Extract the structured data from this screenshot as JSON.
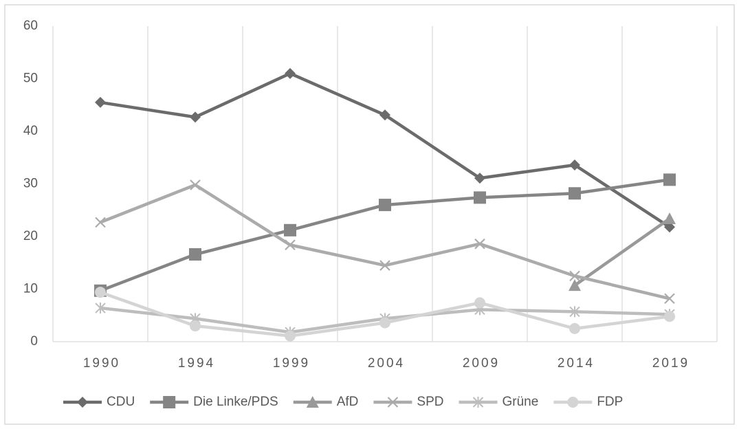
{
  "chart_data": {
    "type": "line",
    "categories": [
      "1990",
      "1994",
      "1999",
      "2004",
      "2009",
      "2014",
      "2019"
    ],
    "series": [
      {
        "name": "CDU",
        "color": "#6b6b6b",
        "marker": "diamond",
        "values": [
          45.5,
          42.7,
          51.0,
          43.1,
          31.1,
          33.6,
          21.8
        ]
      },
      {
        "name": "Die Linke/PDS",
        "color": "#858585",
        "marker": "square",
        "values": [
          9.7,
          16.6,
          21.2,
          26.0,
          27.4,
          28.2,
          30.8
        ]
      },
      {
        "name": "AfD",
        "color": "#999999",
        "marker": "triangle",
        "values": [
          null,
          null,
          null,
          null,
          null,
          10.7,
          23.4
        ]
      },
      {
        "name": "SPD",
        "color": "#ababab",
        "marker": "x",
        "values": [
          22.7,
          29.8,
          18.4,
          14.5,
          18.6,
          12.5,
          8.2
        ]
      },
      {
        "name": "Grüne",
        "color": "#bdbdbd",
        "marker": "star",
        "values": [
          6.4,
          4.4,
          1.8,
          4.4,
          6.1,
          5.7,
          5.2
        ]
      },
      {
        "name": "FDP",
        "color": "#d4d4d4",
        "marker": "circle",
        "values": [
          9.4,
          3.0,
          1.1,
          3.6,
          7.4,
          2.5,
          4.8
        ]
      }
    ],
    "ylim": [
      0,
      60
    ],
    "yticks": [
      0,
      10,
      20,
      30,
      40,
      50,
      60
    ],
    "grid": "vertical",
    "legend": "bottom"
  }
}
